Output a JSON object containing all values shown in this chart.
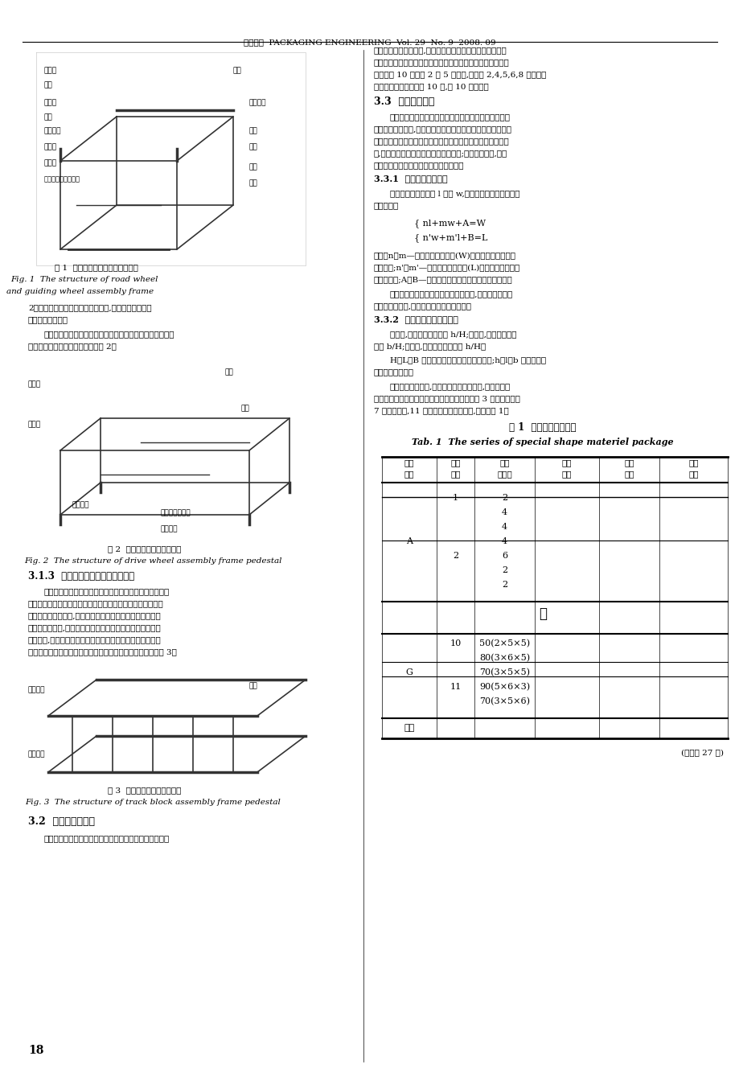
{
  "header": "包装工程  PACKAGING ENGINEERING  Vol. 29  No. 9  2008. 09",
  "page_number": "18",
  "bg_color": "#ffffff",
  "text_color": "#000000",
  "fig1_caption_cn": "图 1  负重轮、诱导轮集装框架结构",
  "fig1_caption_en": "Fig. 1  The structure of road wheel\n    and guiding wheel assembly frame",
  "fig2_caption_cn": "图 2  主动轮集装框架底座结构",
  "fig2_caption_en": "Fig. 2  The structure of drive wheel assembly frame pedestal",
  "fig3_caption_cn": "图 3  履带板集装框架底座结构",
  "fig3_caption_en": "Fig. 3  The structure of track block assembly frame pedestal",
  "table_title_cn": "表 1  特形器材包装系列",
  "table_title_en": "Tab. 1  The series of special shape materiel package",
  "table_headers": [
    "模数\n系列",
    "尺寸\n系列",
    "包装\n单元数",
    "适用\n器材",
    "器材\n尺寸",
    "器材\n质量"
  ],
  "section_31_title": "3.1.3  履带板集装框架底座结构设计",
  "section_32_title": "3.2  包装单元数优化",
  "section_33_title": "3.3  包装尺寸优化",
  "continued": "(下转第 27 页)"
}
